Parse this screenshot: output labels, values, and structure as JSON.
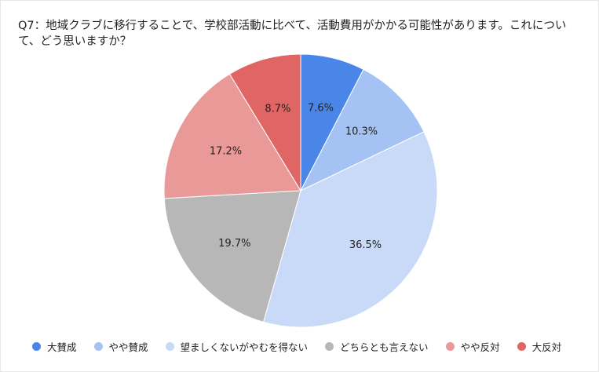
{
  "chart_data": {
    "type": "pie",
    "title": "Q7：地域クラブに移行することで、学校部活動に比べて、活動費用がかかる可能性があります。これについて、どう思いますか？",
    "categories": [
      "大賛成",
      "やや賛成",
      "望ましくないがやむを得ない",
      "どちらとも言えない",
      "やや反対",
      "大反対"
    ],
    "values": [
      7.6,
      10.3,
      36.5,
      19.7,
      17.2,
      8.7
    ],
    "labels": [
      "7.6%",
      "10.3%",
      "36.5%",
      "19.7%",
      "17.2%",
      "8.7%"
    ],
    "colors": [
      "#4a86e8",
      "#a4c2f4",
      "#c9daf8",
      "#b7b7b7",
      "#ea9999",
      "#e06666"
    ],
    "legend_position": "bottom",
    "start_angle": "12 o'clock",
    "direction": "clockwise"
  }
}
